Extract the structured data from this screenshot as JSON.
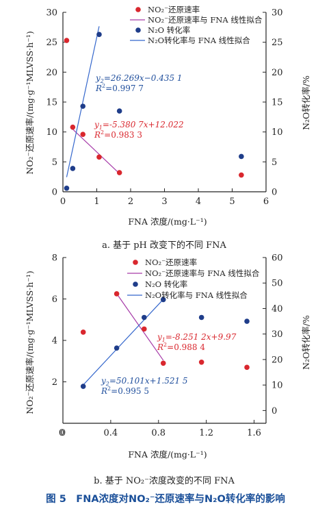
{
  "colors": {
    "rate_point": "#d9272e",
    "rate_line": "#a63aa8",
    "conv_point": "#1f3d8a",
    "conv_line": "#3366cc",
    "eq_red": "#d9272e",
    "eq_blue": "#1f4e9c",
    "caption_blue": "#1a4f99"
  },
  "figure_caption": "图 5　FNA浓度对NO₂⁻还原速率与N₂O转化率的影响",
  "chart_data": [
    {
      "type": "scatter",
      "panel": "a",
      "subcaption": "a. 基于 pH 改变下的不同 FNA",
      "xlabel": "FNA 浓度/(mg·L⁻¹)",
      "ylabel_left": "NO₂⁻还原速率/(mg·g⁻¹MLVSS·h⁻¹)",
      "ylabel_right": "N₂O转化率/%",
      "xlim": [
        0,
        6
      ],
      "xticks": [
        "0",
        "1",
        "2",
        "3",
        "4",
        "5",
        "6"
      ],
      "ylim_left": [
        0,
        30
      ],
      "yticks_left": [
        "0",
        "5",
        "10",
        "15",
        "20",
        "25",
        "30"
      ],
      "ylim_right": [
        0,
        30
      ],
      "yticks_right": [
        "0",
        "5",
        "10",
        "15",
        "20",
        "25",
        "30"
      ],
      "legend": [
        "NO₂⁻还原速率",
        "NO₂⁻还原速率与 FNA 线性拟合",
        "N₂O 转化率",
        "N₂O转化率与 FNA 线性拟合"
      ],
      "series": [
        {
          "name": "NO₂⁻还原速率",
          "axis": "left",
          "x": [
            0.11,
            0.29,
            0.59,
            1.07,
            1.67,
            5.27
          ],
          "y": [
            25.3,
            10.8,
            9.6,
            5.8,
            3.2,
            2.8
          ]
        },
        {
          "name": "N₂O 转化率",
          "axis": "right",
          "x": [
            0.11,
            0.29,
            0.59,
            1.07,
            1.67,
            5.27
          ],
          "y": [
            0.6,
            3.9,
            14.3,
            26.3,
            13.5,
            5.9
          ]
        }
      ],
      "fits": [
        {
          "name": "NO₂⁻还原速率与 FNA 线性拟合",
          "axis": "left",
          "slope": -5.3807,
          "intercept": 12.022,
          "x_range": [
            0.29,
            1.67
          ],
          "equation_y": "y",
          "equation_sub": "1",
          "equation_rest": "=-5.380 7x+12.022",
          "r2_label": "R",
          "r2_value": "=0.983 3"
        },
        {
          "name": "N₂O转化率与 FNA 线性拟合",
          "axis": "right",
          "slope": 26.269,
          "intercept": -0.4351,
          "x_range": [
            0.11,
            1.07
          ],
          "equation_y": "y",
          "equation_sub": "2",
          "equation_rest": "=26.269x−0.435 1",
          "r2_label": "R",
          "r2_value": "=0.997 7"
        }
      ]
    },
    {
      "type": "scatter",
      "panel": "b",
      "subcaption": "b. 基于 NO₂⁻浓度改变的不同 FNA",
      "xlabel": "FNA 浓度/(mg·L⁻¹)",
      "ylabel_left": "NO₂⁻还原速率/(mg·g⁻¹MLVSS·h⁻¹)",
      "ylabel_right": "N₂O转化率/%",
      "xlim": [
        0,
        1.7
      ],
      "xticks": [
        "0",
        "0.4",
        "0.8",
        "1.2",
        "1.6"
      ],
      "ylim_left": [
        0,
        8
      ],
      "yticks_left": [
        "2",
        "4",
        "6",
        "8"
      ],
      "ylim_right": [
        -5,
        60
      ],
      "yticks_right": [
        "0",
        "10",
        "20",
        "30",
        "40",
        "50",
        "60"
      ],
      "legend": [
        "NO₂⁻还原速率",
        "NO₂⁻还原速率与 FNA 线性拟合",
        "N₂O 转化率",
        "N₂O转化率与 FNA 线性拟合"
      ],
      "series": [
        {
          "name": "NO₂⁻还原速率",
          "axis": "left",
          "x": [
            0.17,
            0.45,
            0.68,
            0.84,
            1.16,
            1.54
          ],
          "y": [
            4.4,
            6.25,
            4.55,
            2.9,
            2.95,
            2.7
          ]
        },
        {
          "name": "N₂O 转化率",
          "axis": "right",
          "x": [
            0.17,
            0.45,
            0.68,
            0.84,
            1.16,
            1.54
          ],
          "y": [
            9.5,
            24.5,
            36.5,
            43.5,
            36.5,
            35.0
          ]
        }
      ],
      "fits": [
        {
          "name": "NO₂⁻还原速率与 FNA 线性拟合",
          "axis": "left",
          "slope": -8.251,
          "intercept": 9.97,
          "x_range": [
            0.45,
            0.84
          ],
          "equation_y": "y",
          "equation_sub": "1",
          "equation_rest": "=-8.251 2x+9.97",
          "r2_label": "R",
          "r2_value": "=0.988 4"
        },
        {
          "name": "N₂O转化率与 FNA 线性拟合",
          "axis": "right",
          "slope": 50.101,
          "intercept": 1.5215,
          "x_range": [
            0.17,
            0.84
          ],
          "equation_y": "y",
          "equation_sub": "2",
          "equation_rest": "=50.101x+1.521 5",
          "r2_label": "R",
          "r2_value": "=0.995 5"
        }
      ]
    }
  ]
}
